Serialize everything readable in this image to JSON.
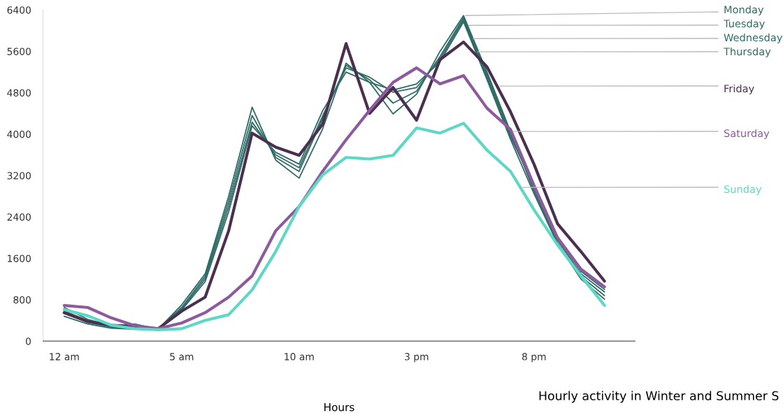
{
  "chart_data": {
    "type": "line",
    "title": "Hourly activity in Winter and Summer S",
    "xlabel": "Hours",
    "categories": [
      "12 am",
      null,
      null,
      null,
      null,
      "5 am",
      null,
      null,
      null,
      null,
      "10 am",
      null,
      null,
      null,
      null,
      "3 pm",
      null,
      null,
      null,
      null,
      "8 pm",
      null,
      null,
      null
    ],
    "ylim": [
      0,
      6400
    ],
    "yticks": [
      0,
      800,
      1600,
      2400,
      3200,
      4000,
      4800,
      5600,
      6400
    ],
    "grid": false,
    "legend": false,
    "marker": "none",
    "line_style": "solid",
    "series": [
      {
        "name": "Monday",
        "color": "#2e6b66",
        "values": [
          650,
          420,
          300,
          330,
          230,
          700,
          1300,
          2800,
          4520,
          3500,
          3150,
          4100,
          5370,
          5000,
          4390,
          4770,
          5600,
          6290,
          5200,
          4050,
          2900,
          1900,
          1250,
          880
        ]
      },
      {
        "name": "Tuesday",
        "color": "#2e6b66",
        "values": [
          580,
          400,
          290,
          260,
          240,
          650,
          1250,
          2700,
          4360,
          3550,
          3280,
          4300,
          5330,
          5050,
          4600,
          4830,
          5500,
          6250,
          5150,
          4000,
          2950,
          1950,
          1300,
          950
        ]
      },
      {
        "name": "Wednesday",
        "color": "#2e6b66",
        "values": [
          540,
          360,
          270,
          240,
          230,
          620,
          1200,
          2600,
          4230,
          3600,
          3350,
          4350,
          5280,
          5100,
          4810,
          4900,
          5450,
          6210,
          5100,
          3950,
          3000,
          2000,
          1350,
          1000
        ]
      },
      {
        "name": "Thursday",
        "color": "#2e6b66",
        "values": [
          480,
          330,
          250,
          230,
          230,
          600,
          1150,
          2500,
          4160,
          3650,
          3420,
          4450,
          5200,
          5000,
          4850,
          4970,
          5400,
          6170,
          5050,
          3900,
          2850,
          1880,
          1200,
          810
        ]
      },
      {
        "name": "Friday",
        "color": "#4b2f4f",
        "values": [
          550,
          380,
          310,
          270,
          240,
          580,
          850,
          2130,
          4020,
          3750,
          3590,
          4190,
          5750,
          4400,
          4900,
          4270,
          5440,
          5780,
          5300,
          4430,
          3420,
          2270,
          1730,
          1160
        ]
      },
      {
        "name": "Saturday",
        "color": "#8e5a9e",
        "values": [
          690,
          650,
          450,
          300,
          240,
          350,
          550,
          850,
          1260,
          2130,
          2600,
          3280,
          3890,
          4460,
          5000,
          5280,
          4970,
          5130,
          4500,
          4090,
          3010,
          2000,
          1390,
          1050
        ]
      },
      {
        "name": "Sunday",
        "color": "#5ed8c5",
        "values": [
          610,
          490,
          310,
          240,
          220,
          240,
          400,
          510,
          990,
          1730,
          2600,
          3210,
          3550,
          3520,
          3590,
          4120,
          4020,
          4210,
          3690,
          3280,
          2540,
          1860,
          1260,
          690
        ]
      }
    ]
  }
}
